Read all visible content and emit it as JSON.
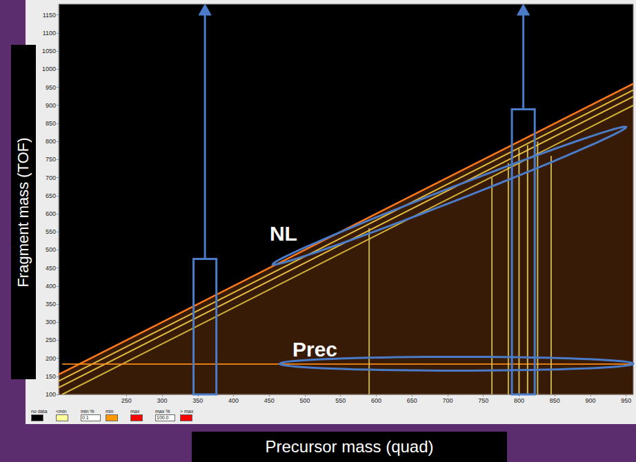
{
  "chart_data": {
    "type": "line",
    "x_label": "Precursor mass (quad)",
    "y_label": "Fragment mass (TOF)",
    "xlim": [
      155,
      960
    ],
    "xticks": [
      250,
      300,
      350,
      400,
      450,
      500,
      550,
      600,
      650,
      700,
      750,
      800,
      850,
      900,
      950
    ],
    "ylim": [
      100,
      1180
    ],
    "yticks": [
      100,
      150,
      200,
      250,
      300,
      350,
      400,
      450,
      500,
      550,
      600,
      650,
      700,
      750,
      800,
      850,
      900,
      950,
      1000,
      1050,
      1100,
      1150
    ],
    "grid": false,
    "series": [
      {
        "type": "area",
        "color": "#ff7a1a",
        "x": [
          155,
          960
        ],
        "values": [
          155,
          960
        ]
      },
      {
        "type": "line",
        "color": "#ffd84a",
        "x": [
          155,
          960
        ],
        "values": [
          137,
          942
        ]
      },
      {
        "type": "line",
        "color": "#ffd84a",
        "x": [
          155,
          960
        ],
        "values": [
          119,
          924
        ]
      },
      {
        "type": "line",
        "color": "#e8c840",
        "x": [
          160,
          960
        ],
        "values": [
          100,
          900
        ]
      },
      {
        "type": "line",
        "color": "#ff8c1a",
        "x": [
          160,
          960
        ],
        "values": [
          184,
          184
        ]
      },
      {
        "type": "line",
        "color": "#d9c85a",
        "x": [
          590,
          590
        ],
        "values": [
          100,
          560
        ]
      },
      {
        "type": "line",
        "color": "#d9c85a",
        "x": [
          762,
          762
        ],
        "values": [
          100,
          700
        ]
      },
      {
        "type": "line",
        "color": "#d9c85a",
        "x": [
          785,
          785
        ],
        "values": [
          100,
          740
        ]
      },
      {
        "type": "line",
        "color": "#e8d36a",
        "x": [
          800,
          800
        ],
        "values": [
          100,
          780
        ]
      },
      {
        "type": "line",
        "color": "#e8d36a",
        "x": [
          812,
          812
        ],
        "values": [
          100,
          790
        ]
      },
      {
        "type": "line",
        "color": "#e8d36a",
        "x": [
          826,
          826
        ],
        "values": [
          100,
          800
        ]
      },
      {
        "type": "line",
        "color": "#d9c85a",
        "x": [
          845,
          845
        ],
        "values": [
          100,
          760
        ]
      }
    ],
    "annotations": [
      {
        "text": "NL",
        "x": 470,
        "y": 545
      },
      {
        "text": "Prec",
        "x": 514,
        "y": 225
      }
    ],
    "highlights": {
      "rectangles": [
        {
          "x": [
            344,
            376
          ],
          "y": [
            100,
            475
          ]
        },
        {
          "x": [
            790,
            822
          ],
          "y": [
            100,
            889
          ]
        }
      ],
      "arrows": [
        {
          "x": 360,
          "y": [
            475,
            1180
          ]
        },
        {
          "x": 806,
          "y": [
            889,
            1180
          ]
        }
      ],
      "ellipses": [
        {
          "from": [
            455,
            460
          ],
          "to": [
            950,
            840
          ]
        },
        {
          "from": [
            465,
            185
          ],
          "to": [
            960,
            185
          ]
        }
      ]
    }
  },
  "color_scale": {
    "entries": [
      {
        "label": "no data",
        "color": "#000000"
      },
      {
        "label": "<min",
        "color": "#ffff99"
      },
      {
        "label": "min %",
        "value": 0.1
      },
      {
        "label": "min",
        "color": "#ff9900"
      },
      {
        "label": "max",
        "color": "#ff0000"
      },
      {
        "label": "max %",
        "value": 100,
        "value_label": "100.0"
      },
      {
        "label": "> max",
        "color": "#ff0000"
      }
    ]
  }
}
